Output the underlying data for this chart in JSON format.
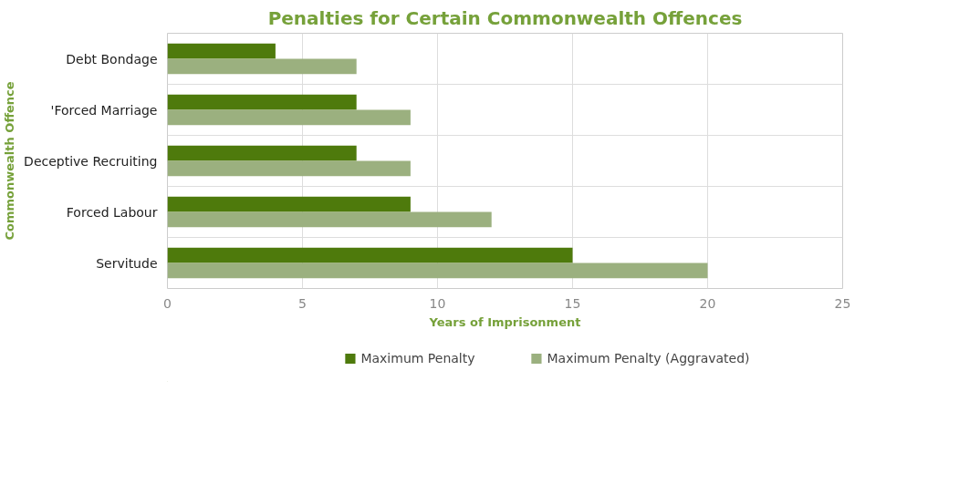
{
  "chart_data": {
    "type": "bar",
    "orientation": "horizontal",
    "title": "Penalties for Certain Commonwealth Offences",
    "xlabel": "Years of Imprisonment",
    "ylabel": "Commonwealth Offence",
    "categories": [
      "Debt Bondage",
      "'Forced Marriage",
      "Deceptive Recruiting",
      "Forced Labour",
      "Servitude"
    ],
    "series": [
      {
        "name": "Maximum Penalty",
        "color": "#4e7a0c",
        "values": [
          4,
          7,
          7,
          9,
          15
        ]
      },
      {
        "name": "Maximum Penalty (Aggravated)",
        "color": "#9bb07f",
        "values": [
          7,
          9,
          9,
          12,
          20
        ]
      }
    ],
    "xlim": [
      0,
      25
    ],
    "xticks": [
      0,
      5,
      10,
      15,
      20,
      25
    ],
    "grid": true,
    "legend": "bottom"
  }
}
